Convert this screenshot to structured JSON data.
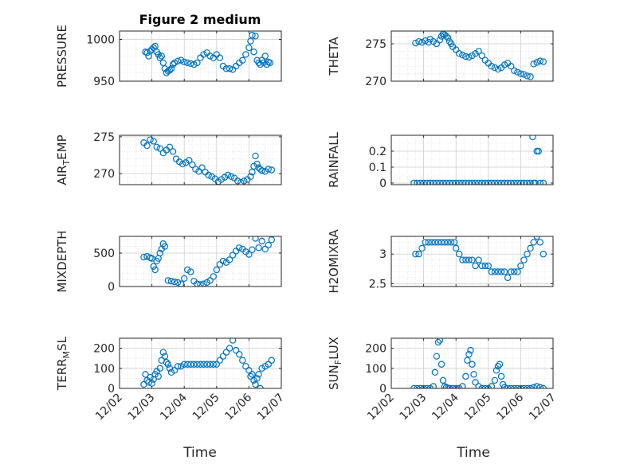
{
  "title": "Figure 2 medium",
  "colors": {
    "marker": "#0072BD",
    "axes": "#262626",
    "grid": "#d9d9d9"
  },
  "chart_data": [
    {
      "type": "scatter",
      "ylabel": "PRESSURE",
      "ylabel_main": "PRESSURE",
      "ylabel_sub": "",
      "ylabel_rest": "",
      "ylim": [
        950,
        1010
      ],
      "yticks": [
        950,
        1000
      ],
      "ytick_labels": [
        "950",
        "1000"
      ],
      "yminor": 10,
      "x": [
        0.8,
        0.85,
        0.9,
        0.95,
        1.0,
        1.05,
        1.1,
        1.15,
        1.2,
        1.25,
        1.3,
        1.35,
        1.4,
        1.45,
        1.5,
        1.55,
        1.6,
        1.65,
        1.7,
        1.8,
        1.9,
        2.0,
        2.1,
        2.2,
        2.3,
        2.4,
        2.5,
        2.6,
        2.7,
        2.8,
        2.9,
        3.0,
        3.1,
        3.2,
        3.3,
        3.4,
        3.5,
        3.6,
        3.7,
        3.8,
        3.9,
        4.0,
        4.05,
        4.1,
        4.15,
        4.2,
        4.25,
        4.3,
        4.35,
        4.4,
        4.45,
        4.5,
        4.55,
        4.6,
        4.65
      ],
      "y": [
        985,
        984,
        980,
        986,
        988,
        990,
        992,
        985,
        982,
        978,
        980,
        972,
        965,
        960,
        962,
        963,
        965,
        970,
        972,
        974,
        975,
        973,
        972,
        971,
        970,
        972,
        978,
        982,
        984,
        980,
        978,
        982,
        978,
        968,
        965,
        965,
        964,
        968,
        972,
        975,
        982,
        990,
        998,
        1005,
        985,
        1004,
        975,
        972,
        970,
        975,
        972,
        980,
        970,
        973,
        972
      ]
    },
    {
      "type": "scatter",
      "ylabel": "THETA",
      "ylabel_main": "THETA",
      "ylabel_sub": "",
      "ylabel_rest": "",
      "ylim": [
        270,
        276.7
      ],
      "yticks": [
        270,
        275
      ],
      "ytick_labels": [
        "270",
        "275"
      ],
      "yminor": 1,
      "x": [
        0.75,
        0.85,
        0.95,
        1.05,
        1.15,
        1.2,
        1.3,
        1.4,
        1.5,
        1.55,
        1.6,
        1.65,
        1.7,
        1.75,
        1.8,
        1.85,
        1.9,
        2.0,
        2.1,
        2.2,
        2.3,
        2.4,
        2.5,
        2.6,
        2.7,
        2.8,
        2.9,
        3.0,
        3.1,
        3.2,
        3.3,
        3.4,
        3.5,
        3.6,
        3.7,
        3.8,
        3.9,
        4.0,
        4.1,
        4.2,
        4.3,
        4.4,
        4.5,
        4.6,
        4.7
      ],
      "y": [
        275.1,
        275.3,
        275.2,
        275.4,
        275.2,
        275.6,
        275.3,
        275.0,
        275.5,
        276.0,
        276.3,
        276.2,
        276.0,
        275.8,
        275.3,
        275.0,
        274.6,
        274.2,
        273.7,
        273.5,
        273.3,
        273.2,
        273.4,
        273.7,
        274.0,
        273.4,
        272.8,
        272.4,
        272.0,
        271.8,
        271.6,
        271.8,
        272.2,
        272.4,
        272.0,
        271.4,
        271.2,
        271.0,
        270.9,
        270.7,
        270.6,
        272.3,
        272.5,
        272.7,
        272.6
      ]
    },
    {
      "type": "scatter",
      "ylabel": "AIR_TEMP",
      "ylabel_main": "AIR",
      "ylabel_sub": "T",
      "ylabel_rest": "EMP",
      "ylim": [
        268.5,
        275.2
      ],
      "yticks": [
        270,
        275
      ],
      "ytick_labels": [
        "270",
        "275"
      ],
      "yminor": 1,
      "x": [
        0.75,
        0.85,
        0.95,
        1.05,
        1.15,
        1.25,
        1.35,
        1.45,
        1.55,
        1.65,
        1.75,
        1.85,
        1.95,
        2.05,
        2.15,
        2.25,
        2.35,
        2.45,
        2.55,
        2.65,
        2.75,
        2.85,
        2.95,
        3.05,
        3.15,
        3.25,
        3.35,
        3.45,
        3.55,
        3.65,
        3.75,
        3.85,
        3.95,
        4.05,
        4.1,
        4.15,
        4.2,
        4.25,
        4.3,
        4.35,
        4.4,
        4.5,
        4.6,
        4.7
      ],
      "y": [
        274.2,
        273.8,
        274.6,
        274.4,
        273.6,
        273.4,
        272.8,
        273.2,
        273.6,
        273.0,
        272.0,
        271.6,
        271.3,
        271.5,
        271.8,
        271.2,
        270.6,
        270.3,
        270.8,
        270.2,
        269.8,
        269.6,
        269.3,
        268.9,
        269.2,
        269.5,
        269.8,
        269.6,
        269.4,
        269.0,
        268.8,
        269.0,
        269.2,
        269.6,
        270.2,
        271.0,
        272.4,
        271.3,
        270.8,
        270.6,
        270.4,
        270.3,
        270.6,
        270.5
      ]
    },
    {
      "type": "scatter",
      "ylabel": "RAINFALL",
      "ylabel_main": "RAINFALL",
      "ylabel_sub": "",
      "ylabel_rest": "",
      "ylim": [
        -0.01,
        0.3
      ],
      "yticks": [
        0,
        0.1,
        0.2
      ],
      "ytick_labels": [
        "0",
        "0.1",
        "0.2"
      ],
      "yminor": 0.05,
      "x": [
        0.7,
        0.8,
        0.9,
        1.0,
        1.1,
        1.2,
        1.3,
        1.4,
        1.5,
        1.6,
        1.7,
        1.8,
        1.9,
        2.0,
        2.1,
        2.2,
        2.3,
        2.4,
        2.5,
        2.6,
        2.7,
        2.8,
        2.9,
        3.0,
        3.1,
        3.2,
        3.3,
        3.4,
        3.5,
        3.6,
        3.7,
        3.8,
        3.9,
        4.0,
        4.1,
        4.2,
        4.3,
        4.37,
        4.4,
        4.45,
        4.5,
        4.55,
        4.6,
        4.7
      ],
      "y": [
        0,
        0,
        0,
        0,
        0,
        0,
        0,
        0,
        0,
        0,
        0,
        0,
        0,
        0,
        0,
        0,
        0,
        0,
        0,
        0,
        0,
        0,
        0,
        0,
        0,
        0,
        0,
        0,
        0,
        0,
        0,
        0,
        0,
        0,
        0,
        0,
        0,
        0.29,
        0,
        0,
        0.2,
        0.2,
        0,
        0
      ]
    },
    {
      "type": "scatter",
      "ylabel": "MIXDEPTH",
      "ylabel_main": "MIXDEPTH",
      "ylabel_sub": "",
      "ylabel_rest": "",
      "ylim": [
        0,
        750
      ],
      "yticks": [
        0,
        500
      ],
      "ytick_labels": [
        "0",
        "500"
      ],
      "yminor": 100,
      "x": [
        0.75,
        0.85,
        0.95,
        1.0,
        1.05,
        1.1,
        1.15,
        1.2,
        1.25,
        1.3,
        1.35,
        1.4,
        1.5,
        1.6,
        1.7,
        1.8,
        1.9,
        2.0,
        2.1,
        2.2,
        2.3,
        2.4,
        2.5,
        2.6,
        2.7,
        2.8,
        2.9,
        3.0,
        3.1,
        3.2,
        3.3,
        3.4,
        3.5,
        3.6,
        3.7,
        3.8,
        3.9,
        4.0,
        4.1,
        4.2,
        4.3,
        4.4,
        4.5,
        4.6,
        4.7
      ],
      "y": [
        440,
        450,
        430,
        420,
        300,
        250,
        380,
        420,
        500,
        560,
        640,
        600,
        90,
        80,
        70,
        60,
        40,
        120,
        250,
        220,
        80,
        40,
        30,
        40,
        60,
        90,
        150,
        250,
        330,
        380,
        360,
        400,
        470,
        530,
        580,
        560,
        520,
        480,
        550,
        720,
        580,
        680,
        560,
        620,
        700
      ]
    },
    {
      "type": "scatter",
      "ylabel": "H2OMIXRA",
      "ylabel_main": "H2OMIXRA",
      "ylabel_sub": "",
      "ylabel_rest": "",
      "ylim": [
        2.45,
        3.3
      ],
      "yticks": [
        2.5,
        3
      ],
      "ytick_labels": [
        "2.5",
        "3"
      ],
      "yminor": 0.1,
      "x": [
        0.75,
        0.85,
        0.95,
        1.05,
        1.15,
        1.25,
        1.35,
        1.45,
        1.55,
        1.65,
        1.75,
        1.85,
        1.95,
        2.0,
        2.1,
        2.2,
        2.3,
        2.4,
        2.5,
        2.6,
        2.7,
        2.8,
        2.9,
        3.0,
        3.1,
        3.2,
        3.3,
        3.4,
        3.5,
        3.6,
        3.7,
        3.8,
        3.9,
        4.0,
        4.1,
        4.2,
        4.3,
        4.4,
        4.5,
        4.6,
        4.7
      ],
      "y": [
        3.0,
        3.0,
        3.1,
        3.2,
        3.2,
        3.2,
        3.2,
        3.2,
        3.2,
        3.2,
        3.2,
        3.2,
        3.2,
        3.1,
        3.0,
        2.9,
        2.9,
        2.9,
        2.9,
        2.8,
        2.9,
        2.8,
        2.8,
        2.8,
        2.7,
        2.7,
        2.7,
        2.7,
        2.7,
        2.6,
        2.7,
        2.7,
        2.7,
        2.8,
        2.9,
        3.0,
        3.1,
        3.2,
        3.3,
        3.2,
        3.0
      ]
    },
    {
      "type": "scatter",
      "ylabel": "TERR_MSL",
      "ylabel_main": "TERR",
      "ylabel_sub": "M",
      "ylabel_rest": "SL",
      "ylim": [
        0,
        250
      ],
      "yticks": [
        0,
        100,
        200
      ],
      "ytick_labels": [
        "0",
        "100",
        "200"
      ],
      "yminor": 50,
      "x": [
        0.75,
        0.8,
        0.85,
        0.9,
        0.95,
        1.0,
        1.05,
        1.1,
        1.15,
        1.2,
        1.25,
        1.3,
        1.35,
        1.4,
        1.45,
        1.5,
        1.55,
        1.6,
        1.7,
        1.8,
        1.9,
        2.0,
        2.1,
        2.2,
        2.3,
        2.4,
        2.5,
        2.6,
        2.7,
        2.8,
        2.9,
        3.0,
        3.1,
        3.2,
        3.3,
        3.4,
        3.5,
        3.6,
        3.7,
        3.8,
        3.9,
        4.0,
        4.05,
        4.1,
        4.15,
        4.2,
        4.25,
        4.3,
        4.35,
        4.4,
        4.5,
        4.6,
        4.7
      ],
      "y": [
        20,
        70,
        40,
        30,
        55,
        25,
        45,
        70,
        85,
        60,
        100,
        140,
        180,
        160,
        130,
        120,
        100,
        80,
        90,
        110,
        110,
        120,
        120,
        120,
        120,
        120,
        120,
        120,
        120,
        120,
        120,
        120,
        140,
        160,
        180,
        200,
        240,
        190,
        170,
        140,
        110,
        90,
        60,
        70,
        40,
        20,
        50,
        70,
        0,
        100,
        110,
        120,
        140
      ]
    },
    {
      "type": "scatter",
      "ylabel": "SUN_FLUX",
      "ylabel_main": "SUN",
      "ylabel_sub": "F",
      "ylabel_rest": "LUX",
      "ylim": [
        0,
        250
      ],
      "yticks": [
        0,
        100,
        200
      ],
      "ytick_labels": [
        "0",
        "100",
        "200"
      ],
      "yminor": 50,
      "x": [
        0.7,
        0.8,
        0.9,
        1.0,
        1.1,
        1.2,
        1.3,
        1.35,
        1.4,
        1.45,
        1.5,
        1.55,
        1.6,
        1.65,
        1.7,
        1.75,
        1.8,
        1.9,
        2.0,
        2.1,
        2.2,
        2.3,
        2.35,
        2.4,
        2.45,
        2.5,
        2.55,
        2.6,
        2.7,
        2.8,
        2.9,
        3.0,
        3.1,
        3.2,
        3.25,
        3.3,
        3.35,
        3.4,
        3.45,
        3.5,
        3.6,
        3.7,
        3.8,
        3.9,
        4.0,
        4.1,
        4.2,
        4.3,
        4.4,
        4.5,
        4.6,
        4.7
      ],
      "y": [
        0,
        0,
        0,
        0,
        0,
        0,
        10,
        80,
        160,
        230,
        240,
        120,
        40,
        10,
        5,
        2,
        0,
        0,
        0,
        0,
        10,
        60,
        140,
        170,
        190,
        120,
        70,
        30,
        10,
        0,
        0,
        0,
        10,
        40,
        90,
        110,
        120,
        60,
        20,
        5,
        0,
        0,
        0,
        0,
        0,
        0,
        0,
        0,
        5,
        10,
        5,
        0
      ]
    }
  ],
  "xaxis": {
    "label": "Time",
    "xlim": [
      0,
      5
    ],
    "ticks": [
      0,
      1,
      2,
      3,
      4,
      5
    ],
    "tick_labels": [
      "12/02",
      "12/03",
      "12/04",
      "12/05",
      "12/06",
      "12/07"
    ]
  }
}
